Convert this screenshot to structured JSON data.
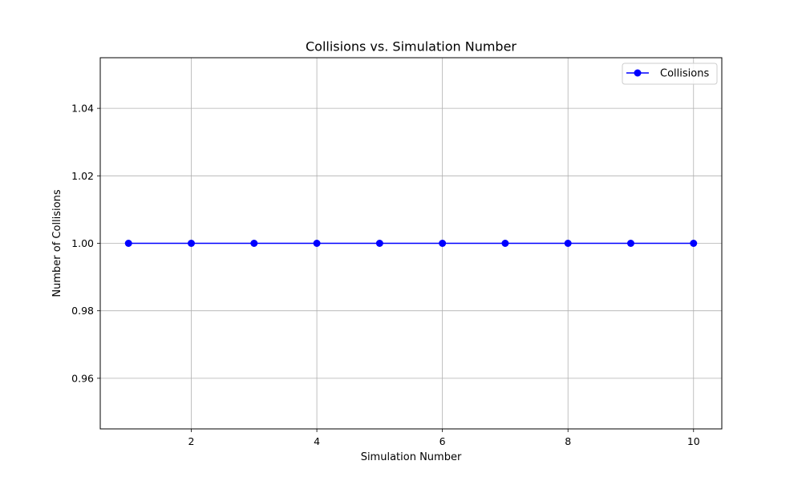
{
  "chart_data": {
    "type": "line",
    "title": "Collisions vs. Simulation Number",
    "xlabel": "Simulation Number",
    "ylabel": "Number of Collisions",
    "x": [
      1,
      2,
      3,
      4,
      5,
      6,
      7,
      8,
      9,
      10
    ],
    "series": [
      {
        "name": "Collisions",
        "values": [
          1,
          1,
          1,
          1,
          1,
          1,
          1,
          1,
          1,
          1
        ],
        "color": "#0000ff",
        "marker": "circle"
      }
    ],
    "xlim": [
      0.55,
      10.45
    ],
    "ylim": [
      0.945,
      1.055
    ],
    "xticks": [
      2,
      4,
      6,
      8,
      10
    ],
    "xtick_labels": [
      "2",
      "4",
      "6",
      "8",
      "10"
    ],
    "yticks": [
      0.96,
      0.98,
      1.0,
      1.02,
      1.04
    ],
    "ytick_labels": [
      "0.96",
      "0.98",
      "1.00",
      "1.02",
      "1.04"
    ],
    "grid": true,
    "legend_position": "top-right"
  }
}
